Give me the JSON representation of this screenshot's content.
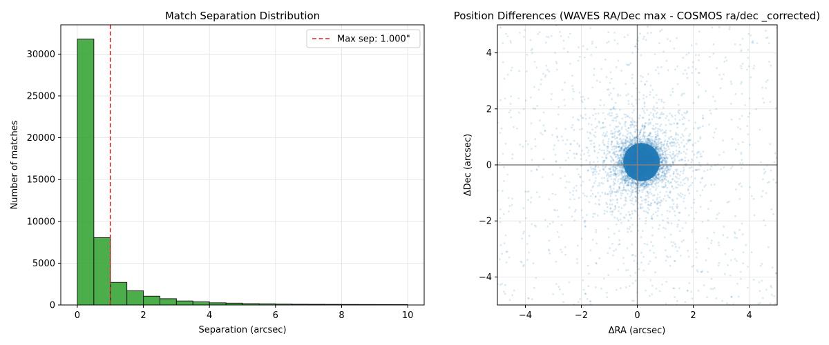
{
  "chart_data": [
    {
      "type": "bar",
      "title": "Match Separation Distribution",
      "xlabel": "Separation (arcsec)",
      "ylabel": "Number of matches",
      "xlim": [
        -0.5,
        10.5
      ],
      "ylim": [
        0,
        33500
      ],
      "xticks": [
        0,
        2,
        4,
        6,
        8,
        10
      ],
      "yticks": [
        0,
        5000,
        10000,
        15000,
        20000,
        25000,
        30000
      ],
      "grid": true,
      "bar_color": "#2ca02c",
      "bin_edges": [
        0,
        0.5,
        1,
        1.5,
        2,
        2.5,
        3,
        3.5,
        4,
        4.5,
        5,
        5.5,
        6,
        6.5,
        7,
        7.5,
        8,
        8.5,
        9,
        9.5,
        10
      ],
      "values": [
        31800,
        8050,
        2700,
        1700,
        1050,
        750,
        480,
        380,
        260,
        220,
        160,
        140,
        110,
        90,
        80,
        70,
        60,
        55,
        50,
        45
      ],
      "vline": {
        "x": 1.0,
        "color": "#d62728",
        "label": "Max sep: 1.000\""
      },
      "legend_position": "top-right"
    },
    {
      "type": "scatter",
      "title": "Position Differences (WAVES RA/Dec max - COSMOS ra/dec _corrected)",
      "xlabel": "ΔRA (arcsec)",
      "ylabel": "ΔDec (arcsec)",
      "xlim": [
        -5,
        5
      ],
      "ylim": [
        -5,
        5
      ],
      "xticks": [
        -4,
        -2,
        0,
        2,
        4
      ],
      "yticks": [
        -4,
        -2,
        0,
        2,
        4
      ],
      "grid": true,
      "point_color": "#1f77b4",
      "core_center": [
        0.15,
        0.1
      ],
      "core_sigma": 0.35,
      "halo_sigma": 1.0,
      "reference_lines": [
        {
          "axis": "x",
          "value": 0
        },
        {
          "axis": "y",
          "value": 0
        }
      ]
    }
  ]
}
